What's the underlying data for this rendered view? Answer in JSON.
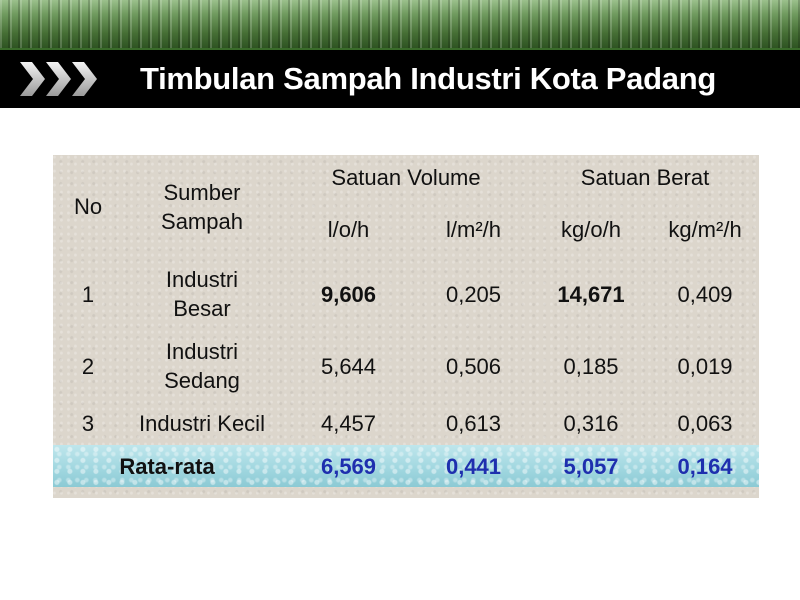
{
  "header": {
    "title": "Timbulan Sampah Industri Kota Padang",
    "icon": "triple-chevron-icon"
  },
  "table": {
    "header": {
      "no": "No",
      "source": "Sumber Sampah",
      "volume_group": "Satuan Volume",
      "weight_group": "Satuan Berat",
      "units": [
        "l/o/h",
        "l/m²/h",
        "kg/o/h",
        "kg/m²/h"
      ]
    },
    "rows": [
      {
        "no": "1",
        "source": "Industri Besar",
        "values": [
          "9,606",
          "0,205",
          "14,671",
          "0,409"
        ]
      },
      {
        "no": "2",
        "source": "Industri Sedang",
        "values": [
          "5,644",
          "0,506",
          "0,185",
          "0,019"
        ]
      },
      {
        "no": "3",
        "source": "Industri Kecil",
        "values": [
          "4,457",
          "0,613",
          "0,316",
          "0,063"
        ]
      }
    ],
    "average": {
      "label": "Rata-rata",
      "values": [
        "6,569",
        "0,441",
        "5,057",
        "0,164"
      ]
    }
  },
  "colors": {
    "title_bar": "#000000",
    "band_green": "#456e34",
    "table_bg": "#dcd6cc",
    "average_bg": "#9fd6df",
    "average_text": "#1e2fae"
  }
}
